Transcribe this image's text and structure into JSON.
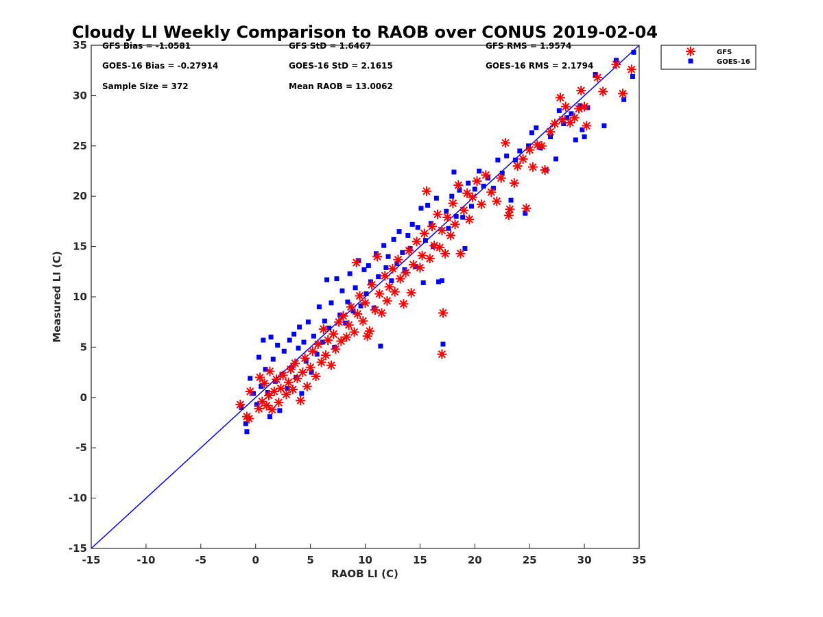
{
  "chart_data": {
    "type": "scatter",
    "title": "Cloudy LI Weekly Comparison to RAOB over CONUS 2019-02-04",
    "xlabel": "RAOB LI (C)",
    "ylabel": "Measured LI (C)",
    "xlim": [
      -15,
      35
    ],
    "ylim": [
      -15,
      35
    ],
    "xticks": [
      "-15",
      "-10",
      "-5",
      "0",
      "5",
      "10",
      "15",
      "20",
      "25",
      "30",
      "35"
    ],
    "yticks": [
      "-15",
      "-10",
      "-5",
      "0",
      "5",
      "10",
      "15",
      "20",
      "25",
      "30",
      "35"
    ],
    "grid": false,
    "legend_position": "outside top-right",
    "reference_line": {
      "x": [
        -15,
        35
      ],
      "y": [
        -15,
        35
      ],
      "color": "#0000ff"
    },
    "stats": [
      [
        "GFS Bias = -1.0581",
        "GFS StD = 1.6467",
        "GFS RMS = 1.9574"
      ],
      [
        "GOES-16 Bias = -0.27914",
        "GOES-16 StD = 2.1615",
        "GOES-16 RMS = 2.1794"
      ],
      [
        "Sample Size = 372",
        "Mean RAOB = 13.0062",
        ""
      ]
    ],
    "series": [
      {
        "name": "GFS",
        "marker": "asterisk",
        "color": "#ff0000",
        "points": [
          [
            -1.4,
            -0.7
          ],
          [
            -0.8,
            -1.9
          ],
          [
            -0.6,
            -2.1
          ],
          [
            -0.5,
            0.6
          ],
          [
            0.3,
            -1.1
          ],
          [
            0.4,
            2.0
          ],
          [
            0.6,
            -0.4
          ],
          [
            0.8,
            1.4
          ],
          [
            1.0,
            -0.8
          ],
          [
            1.2,
            0.2
          ],
          [
            1.3,
            2.6
          ],
          [
            1.5,
            -1.2
          ],
          [
            1.7,
            0.6
          ],
          [
            1.9,
            1.8
          ],
          [
            2.1,
            -0.5
          ],
          [
            2.3,
            0.9
          ],
          [
            2.5,
            2.2
          ],
          [
            2.8,
            0.3
          ],
          [
            3.0,
            1.5
          ],
          [
            3.2,
            2.8
          ],
          [
            3.4,
            0.8
          ],
          [
            3.6,
            3.4
          ],
          [
            3.8,
            1.9
          ],
          [
            4.1,
            -0.3
          ],
          [
            4.3,
            2.5
          ],
          [
            4.5,
            3.9
          ],
          [
            4.7,
            1.1
          ],
          [
            5.0,
            3.0
          ],
          [
            5.2,
            4.6
          ],
          [
            5.5,
            2.1
          ],
          [
            5.7,
            5.3
          ],
          [
            6.0,
            3.5
          ],
          [
            6.2,
            6.8
          ],
          [
            6.4,
            4.2
          ],
          [
            6.6,
            5.7
          ],
          [
            6.9,
            3.2
          ],
          [
            7.1,
            6.3
          ],
          [
            7.3,
            4.8
          ],
          [
            7.6,
            7.5
          ],
          [
            7.8,
            5.6
          ],
          [
            8.0,
            8.1
          ],
          [
            8.3,
            6.0
          ],
          [
            8.5,
            7.2
          ],
          [
            8.7,
            9.0
          ],
          [
            9.0,
            6.5
          ],
          [
            9.2,
            13.4
          ],
          [
            9.3,
            8.3
          ],
          [
            9.5,
            10.1
          ],
          [
            9.8,
            7.6
          ],
          [
            10.0,
            9.4
          ],
          [
            10.2,
            6.1
          ],
          [
            10.4,
            6.6
          ],
          [
            10.6,
            11.2
          ],
          [
            10.9,
            8.7
          ],
          [
            11.1,
            14.0
          ],
          [
            11.3,
            10.3
          ],
          [
            11.5,
            8.4
          ],
          [
            11.8,
            12.1
          ],
          [
            12.0,
            9.6
          ],
          [
            12.2,
            11.0
          ],
          [
            12.5,
            12.8
          ],
          [
            12.7,
            10.5
          ],
          [
            13.0,
            13.7
          ],
          [
            13.2,
            11.8
          ],
          [
            13.5,
            9.3
          ],
          [
            13.7,
            12.4
          ],
          [
            14.0,
            14.6
          ],
          [
            14.2,
            10.4
          ],
          [
            14.4,
            13.2
          ],
          [
            14.7,
            15.5
          ],
          [
            15.0,
            12.9
          ],
          [
            15.2,
            14.1
          ],
          [
            15.4,
            16.3
          ],
          [
            15.6,
            20.5
          ],
          [
            15.9,
            13.8
          ],
          [
            16.1,
            17.0
          ],
          [
            16.3,
            15.1
          ],
          [
            16.6,
            18.2
          ],
          [
            16.8,
            14.9
          ],
          [
            17.0,
            16.6
          ],
          [
            17.1,
            8.4
          ],
          [
            17.0,
            4.3
          ],
          [
            17.3,
            14.3
          ],
          [
            17.5,
            17.9
          ],
          [
            17.8,
            16.1
          ],
          [
            18.0,
            19.3
          ],
          [
            18.2,
            17.2
          ],
          [
            18.5,
            21.1
          ],
          [
            18.7,
            14.3
          ],
          [
            19.0,
            18.6
          ],
          [
            19.3,
            20.3
          ],
          [
            19.5,
            17.7
          ],
          [
            19.8,
            19.9
          ],
          [
            20.2,
            21.5
          ],
          [
            20.6,
            19.2
          ],
          [
            21.0,
            22.1
          ],
          [
            21.5,
            20.4
          ],
          [
            22.0,
            19.5
          ],
          [
            22.4,
            21.8
          ],
          [
            22.8,
            25.3
          ],
          [
            23.1,
            18.1
          ],
          [
            23.2,
            18.7
          ],
          [
            23.6,
            21.3
          ],
          [
            23.9,
            23.0
          ],
          [
            24.4,
            23.7
          ],
          [
            24.7,
            18.8
          ],
          [
            25.0,
            24.6
          ],
          [
            25.3,
            22.9
          ],
          [
            25.7,
            25.1
          ],
          [
            26.1,
            25.0
          ],
          [
            26.4,
            22.6
          ],
          [
            26.9,
            26.4
          ],
          [
            27.3,
            27.2
          ],
          [
            27.8,
            29.8
          ],
          [
            28.0,
            27.6
          ],
          [
            28.3,
            28.9
          ],
          [
            28.7,
            27.3
          ],
          [
            29.1,
            27.8
          ],
          [
            29.5,
            28.7
          ],
          [
            29.7,
            30.5
          ],
          [
            30.0,
            28.9
          ],
          [
            30.2,
            27.0
          ],
          [
            31.2,
            31.8
          ],
          [
            31.7,
            30.4
          ],
          [
            32.9,
            33.1
          ],
          [
            33.5,
            30.2
          ],
          [
            34.3,
            32.6
          ]
        ]
      },
      {
        "name": "GOES-16",
        "marker": "square",
        "color": "#0000ff",
        "points": [
          [
            -1.3,
            -1.0
          ],
          [
            -0.9,
            -2.6
          ],
          [
            -0.8,
            -3.4
          ],
          [
            -0.5,
            1.9
          ],
          [
            -0.2,
            0.4
          ],
          [
            0.1,
            -0.7
          ],
          [
            0.3,
            4.0
          ],
          [
            0.5,
            1.1
          ],
          [
            0.7,
            5.7
          ],
          [
            0.9,
            2.8
          ],
          [
            1.1,
            0.5
          ],
          [
            1.3,
            -1.9
          ],
          [
            1.4,
            6.0
          ],
          [
            1.6,
            3.8
          ],
          [
            1.8,
            1.6
          ],
          [
            2.0,
            5.2
          ],
          [
            2.2,
            -1.3
          ],
          [
            2.4,
            2.3
          ],
          [
            2.6,
            4.6
          ],
          [
            2.9,
            0.9
          ],
          [
            3.1,
            5.7
          ],
          [
            3.3,
            3.0
          ],
          [
            3.5,
            6.3
          ],
          [
            3.7,
            2.0
          ],
          [
            3.9,
            4.9
          ],
          [
            4.0,
            7.0
          ],
          [
            4.2,
            0.4
          ],
          [
            4.4,
            5.5
          ],
          [
            4.6,
            3.6
          ],
          [
            4.8,
            7.5
          ],
          [
            5.1,
            2.5
          ],
          [
            5.3,
            6.1
          ],
          [
            5.6,
            4.3
          ],
          [
            5.8,
            9.0
          ],
          [
            6.1,
            5.5
          ],
          [
            6.3,
            7.6
          ],
          [
            6.5,
            11.7
          ],
          [
            6.7,
            6.9
          ],
          [
            6.9,
            9.4
          ],
          [
            7.2,
            5.0
          ],
          [
            7.4,
            11.8
          ],
          [
            7.7,
            8.2
          ],
          [
            7.9,
            10.6
          ],
          [
            8.2,
            7.4
          ],
          [
            8.4,
            9.5
          ],
          [
            8.6,
            12.3
          ],
          [
            8.9,
            8.6
          ],
          [
            9.1,
            10.9
          ],
          [
            9.4,
            13.6
          ],
          [
            9.6,
            9.1
          ],
          [
            9.9,
            12.7
          ],
          [
            10.1,
            10.3
          ],
          [
            10.3,
            13.1
          ],
          [
            10.5,
            11.5
          ],
          [
            10.8,
            8.9
          ],
          [
            11.0,
            14.3
          ],
          [
            11.2,
            12.0
          ],
          [
            11.4,
            5.1
          ],
          [
            11.7,
            15.1
          ],
          [
            11.9,
            12.9
          ],
          [
            12.1,
            14.0
          ],
          [
            12.4,
            11.6
          ],
          [
            12.6,
            15.7
          ],
          [
            12.9,
            13.3
          ],
          [
            13.1,
            16.5
          ],
          [
            13.4,
            14.4
          ],
          [
            13.6,
            12.7
          ],
          [
            13.9,
            16.1
          ],
          [
            14.1,
            14.8
          ],
          [
            14.3,
            17.2
          ],
          [
            14.6,
            13.0
          ],
          [
            14.8,
            16.9
          ],
          [
            15.1,
            18.8
          ],
          [
            15.3,
            11.4
          ],
          [
            15.5,
            15.6
          ],
          [
            15.7,
            19.1
          ],
          [
            16.0,
            17.3
          ],
          [
            16.2,
            15.0
          ],
          [
            16.5,
            19.8
          ],
          [
            16.7,
            11.5
          ],
          [
            17.0,
            11.6
          ],
          [
            17.1,
            5.3
          ],
          [
            17.4,
            18.5
          ],
          [
            17.6,
            16.8
          ],
          [
            17.9,
            20.0
          ],
          [
            18.1,
            22.4
          ],
          [
            18.3,
            18.0
          ],
          [
            18.6,
            20.6
          ],
          [
            18.9,
            17.9
          ],
          [
            19.1,
            14.8
          ],
          [
            19.4,
            21.3
          ],
          [
            19.7,
            19.0
          ],
          [
            20.0,
            20.7
          ],
          [
            20.4,
            22.5
          ],
          [
            20.8,
            21.0
          ],
          [
            21.2,
            21.8
          ],
          [
            21.7,
            20.8
          ],
          [
            22.1,
            23.6
          ],
          [
            22.5,
            22.3
          ],
          [
            22.9,
            24.0
          ],
          [
            23.3,
            19.6
          ],
          [
            23.7,
            23.6
          ],
          [
            24.1,
            24.5
          ],
          [
            24.6,
            18.3
          ],
          [
            24.9,
            25.0
          ],
          [
            25.2,
            26.3
          ],
          [
            25.6,
            26.8
          ],
          [
            26.0,
            24.8
          ],
          [
            26.5,
            22.6
          ],
          [
            26.9,
            25.9
          ],
          [
            27.4,
            23.7
          ],
          [
            27.7,
            28.5
          ],
          [
            28.1,
            27.2
          ],
          [
            28.4,
            27.8
          ],
          [
            28.8,
            28.2
          ],
          [
            29.2,
            25.6
          ],
          [
            29.6,
            29.0
          ],
          [
            29.8,
            26.6
          ],
          [
            30.0,
            25.9
          ],
          [
            30.3,
            28.8
          ],
          [
            31.0,
            32.1
          ],
          [
            31.8,
            27.0
          ],
          [
            32.9,
            33.5
          ],
          [
            33.6,
            29.6
          ],
          [
            34.4,
            31.9
          ],
          [
            34.5,
            34.3
          ]
        ]
      }
    ]
  }
}
